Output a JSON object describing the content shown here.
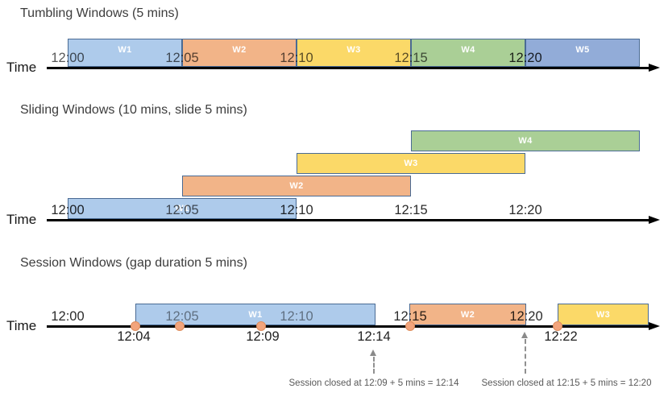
{
  "palette": {
    "window_blue": "#AECBEB",
    "window_orange": "#F2B488",
    "window_yellow": "#FBD968",
    "window_green": "#AACF96",
    "window_dark_blue": "#92ACD8",
    "bar_border": "#4A6B94",
    "event_dot": "#F2A47C",
    "event_dot_border": "#DE8D5C",
    "axis_color": "#000000",
    "annotation_gray": "#595959"
  },
  "sections": {
    "tumbling": {
      "title": "Tumbling Windows (5 mins)",
      "time_axis_label": "Time",
      "ticks": [
        "12:00",
        "12:05",
        "12:10",
        "12:15",
        "12:20"
      ],
      "windows": [
        {
          "label": "W1",
          "color": "#AECBEB"
        },
        {
          "label": "W2",
          "color": "#F2B488"
        },
        {
          "label": "W3",
          "color": "#FBD968"
        },
        {
          "label": "W4",
          "color": "#AACF96"
        },
        {
          "label": "W5",
          "color": "#92ACD8"
        }
      ]
    },
    "sliding": {
      "title": "Sliding Windows (10 mins, slide 5 mins)",
      "time_axis_label": "Time",
      "ticks": [
        "12:00",
        "12:05",
        "12:10",
        "12:15",
        "12:20"
      ],
      "windows": [
        {
          "label": "W1",
          "color": "#AECBEB"
        },
        {
          "label": "W2",
          "color": "#F2B488"
        },
        {
          "label": "W3",
          "color": "#FBD968"
        },
        {
          "label": "W4",
          "color": "#AACF96"
        }
      ]
    },
    "session": {
      "title": "Session Windows (gap duration 5 mins)",
      "time_axis_label": "Time",
      "ticks": [
        "12:00",
        "12:05",
        "12:10",
        "12:15",
        "12:20"
      ],
      "event_labels": [
        "12:04",
        "12:09",
        "12:14",
        "12:22"
      ],
      "windows": [
        {
          "label": "W1",
          "color": "#AECBEB"
        },
        {
          "label": "W2",
          "color": "#F2B488"
        },
        {
          "label": "W3",
          "color": "#FBD968"
        }
      ],
      "annotations": [
        "Session closed at 12:09 + 5 mins = 12:14",
        "Session closed at 12:15 + 5 mins = 12:20"
      ]
    }
  }
}
